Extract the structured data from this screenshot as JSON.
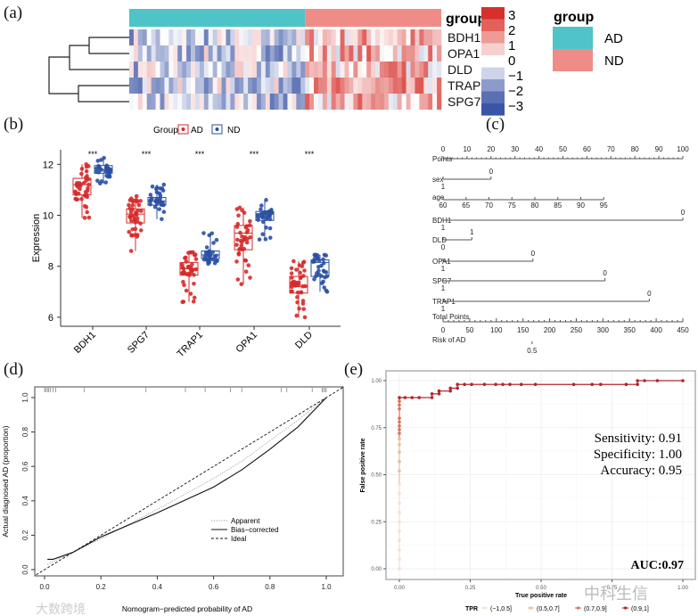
{
  "panel_labels": [
    "(a)",
    "(b)",
    "(c)",
    "(d)",
    "(e)"
  ],
  "watermarks": [
    "中科生信",
    "大数跨境"
  ],
  "chart_data": [
    {
      "type": "heatmap",
      "genes": [
        "BDH1",
        "OPA1",
        "DLD",
        "TRAP1",
        "SPG7"
      ],
      "annotation_title": "group",
      "legend_title": "group",
      "groups": [
        {
          "name": "AD",
          "color": "#4ec4c9",
          "n": 40
        },
        {
          "name": "ND",
          "color": "#f08c88",
          "n": 31
        }
      ],
      "scale_ticks": [
        "3",
        "2",
        "1",
        "0",
        "−1",
        "−2",
        "−3"
      ],
      "low_color": "#3b55a6",
      "mid_color": "#ffffff",
      "high_color": "#d7302a"
    },
    {
      "type": "box",
      "legend_title": "Group",
      "categories": [
        "BDH1",
        "SPG7",
        "TRAP1",
        "OPA1",
        "DLD"
      ],
      "significance": [
        "***",
        "***",
        "***",
        "***",
        "***"
      ],
      "ylabel": "Expression",
      "yticks": [
        6,
        8,
        10,
        12
      ],
      "ylim": [
        5.8,
        12.6
      ],
      "series": [
        {
          "name": "AD",
          "color": "#d62a2a",
          "n": 40,
          "stats_min_q1_median_q3_max": [
            [
              9.9,
              10.8,
              11.2,
              11.45,
              12.0
            ],
            [
              8.6,
              9.7,
              10.05,
              10.25,
              10.75
            ],
            [
              6.6,
              7.65,
              7.9,
              8.15,
              8.55
            ],
            [
              7.3,
              8.65,
              9.3,
              9.6,
              10.3
            ],
            [
              6.0,
              6.95,
              7.2,
              7.6,
              8.2
            ]
          ]
        },
        {
          "name": "ND",
          "color": "#2a4fa3",
          "n": 31,
          "stats_min_q1_median_q3_max": [
            [
              11.25,
              11.65,
              11.8,
              11.95,
              12.25
            ],
            [
              9.85,
              10.4,
              10.55,
              10.7,
              11.2
            ],
            [
              8.1,
              8.3,
              8.45,
              8.6,
              9.3
            ],
            [
              9.05,
              9.8,
              10.05,
              10.15,
              10.6
            ],
            [
              7.0,
              7.6,
              8.15,
              8.25,
              8.45
            ]
          ]
        }
      ]
    },
    {
      "type": "nomogram",
      "points_label": "Points",
      "points_ticks": [
        "0",
        "10",
        "20",
        "30",
        "40",
        "50",
        "60",
        "70",
        "80",
        "90",
        "100"
      ],
      "variables": [
        {
          "label": "sex",
          "levels": [
            {
              "text": "0",
              "points": 20
            },
            {
              "text": "1",
              "points": 0
            }
          ]
        },
        {
          "label": "age",
          "axis_ticks": [
            "60",
            "65",
            "70",
            "75",
            "80",
            "85",
            "90",
            "95"
          ],
          "points_range": [
            0,
            67
          ]
        },
        {
          "label": "BDH1",
          "levels": [
            {
              "text": "0",
              "points": 100
            },
            {
              "text": "1",
              "points": 0
            }
          ]
        },
        {
          "label": "DLD",
          "levels": [
            {
              "text": "1",
              "points": 12
            },
            {
              "text": "0",
              "points": 0
            }
          ]
        },
        {
          "label": "OPA1",
          "levels": [
            {
              "text": "0",
              "points": 37.5
            },
            {
              "text": "1",
              "points": 0
            }
          ]
        },
        {
          "label": "SPG7",
          "levels": [
            {
              "text": "0",
              "points": 67.5
            },
            {
              "text": "1",
              "points": 0
            }
          ]
        },
        {
          "label": "TRAP1",
          "levels": [
            {
              "text": "0",
              "points": 86
            },
            {
              "text": "1",
              "points": 0
            }
          ]
        }
      ],
      "total_label": "Total Points",
      "total_ticks": [
        "0",
        "50",
        "100",
        "150",
        "200",
        "250",
        "300",
        "350",
        "400",
        "450"
      ],
      "risk_label": "Risk of AD",
      "risk_ticks": [
        {
          "text": "0.5",
          "total_points": 167
        }
      ]
    },
    {
      "type": "line",
      "xlabel": "Nomogram−predicted probability of AD",
      "ylabel": "Actual diagnosed AD (proportion)",
      "xticks": [
        "0.0",
        "0.2",
        "0.4",
        "0.6",
        "0.8",
        "1.0"
      ],
      "yticks": [
        "0.0",
        "0.2",
        "0.4",
        "0.6",
        "0.8",
        "1.0"
      ],
      "xlim": [
        -0.03,
        1.06
      ],
      "ylim": [
        -0.03,
        1.06
      ],
      "legend": [
        "Apparent",
        "Bias−corrected",
        "Ideal"
      ],
      "legend_position": "bottom-right",
      "series": [
        {
          "name": "Apparent",
          "style": "dotted",
          "points": [
            [
              0.01,
              0.03
            ],
            [
              0.1,
              0.1
            ],
            [
              0.2,
              0.18
            ],
            [
              0.4,
              0.35
            ],
            [
              0.6,
              0.53
            ],
            [
              0.7,
              0.63
            ],
            [
              0.8,
              0.75
            ],
            [
              0.9,
              0.87
            ],
            [
              1.0,
              1.0
            ]
          ]
        },
        {
          "name": "Bias-corrected",
          "style": "solid",
          "points": [
            [
              0.01,
              0.06
            ],
            [
              0.03,
              0.06
            ],
            [
              0.1,
              0.1
            ],
            [
              0.2,
              0.19
            ],
            [
              0.4,
              0.33
            ],
            [
              0.6,
              0.48
            ],
            [
              0.65,
              0.53
            ],
            [
              0.7,
              0.58
            ],
            [
              0.8,
              0.7
            ],
            [
              0.9,
              0.83
            ],
            [
              1.0,
              1.0
            ]
          ]
        },
        {
          "name": "Ideal",
          "style": "dashed",
          "points": [
            [
              -0.03,
              -0.03
            ],
            [
              1.06,
              1.06
            ]
          ]
        }
      ],
      "rug": [
        0.0,
        0.005,
        0.01,
        0.015,
        0.02,
        0.03,
        0.04,
        0.14,
        0.36,
        0.5,
        0.57,
        0.66,
        0.7,
        0.84,
        0.86,
        0.95,
        0.985,
        0.99,
        0.995,
        1.0
      ]
    },
    {
      "type": "scatter",
      "xlabel": "True positive rate",
      "ylabel": "False positive rate",
      "xticks": [
        "0.00",
        "0.25",
        "0.50",
        "0.75",
        "1.00"
      ],
      "yticks": [
        "0.00",
        "0.25",
        "0.50",
        "0.75",
        "1.00"
      ],
      "legend_title": "TPR",
      "legend_position": "bottom",
      "legend": [
        {
          "label": "(−1,0.5]",
          "color": "#f6e0cf"
        },
        {
          "label": "(0.5,0.7]",
          "color": "#e8bc9f"
        },
        {
          "label": "(0.7,0.9]",
          "color": "#dc7358"
        },
        {
          "label": "(0.9,1]",
          "color": "#b3262a"
        }
      ],
      "roc_points": [
        [
          0,
          0.0
        ],
        [
          0,
          0.05
        ],
        [
          0,
          0.1
        ],
        [
          0,
          0.15
        ],
        [
          0,
          0.2
        ],
        [
          0,
          0.25
        ],
        [
          0,
          0.3
        ],
        [
          0,
          0.35
        ],
        [
          0,
          0.4
        ],
        [
          0,
          0.45
        ],
        [
          0,
          0.52
        ],
        [
          0,
          0.57
        ],
        [
          0,
          0.62
        ],
        [
          0,
          0.66
        ],
        [
          0,
          0.69
        ],
        [
          0,
          0.72
        ],
        [
          0,
          0.74
        ],
        [
          0,
          0.76
        ],
        [
          0,
          0.78
        ],
        [
          0,
          0.8
        ],
        [
          0,
          0.85
        ],
        [
          0,
          0.87
        ],
        [
          0,
          0.89
        ],
        [
          0,
          0.91
        ],
        [
          0.02,
          0.91
        ],
        [
          0.045,
          0.91
        ],
        [
          0.07,
          0.91
        ],
        [
          0.115,
          0.91
        ],
        [
          0.115,
          0.93
        ],
        [
          0.14,
          0.93
        ],
        [
          0.14,
          0.945
        ],
        [
          0.18,
          0.945
        ],
        [
          0.18,
          0.96
        ],
        [
          0.205,
          0.96
        ],
        [
          0.205,
          0.98
        ],
        [
          0.23,
          0.98
        ],
        [
          0.255,
          0.98
        ],
        [
          0.3,
          0.98
        ],
        [
          0.34,
          0.98
        ],
        [
          0.365,
          0.98
        ],
        [
          0.39,
          0.98
        ],
        [
          0.43,
          0.98
        ],
        [
          0.48,
          0.98
        ],
        [
          0.615,
          0.98
        ],
        [
          0.68,
          0.98
        ],
        [
          0.71,
          0.98
        ],
        [
          0.8,
          0.98
        ],
        [
          0.84,
          0.98
        ],
        [
          0.84,
          1.0
        ],
        [
          0.865,
          1.0
        ],
        [
          0.91,
          1.0
        ],
        [
          1.0,
          1.0
        ]
      ],
      "metrics": [
        "Sensitivity: 0.91",
        "Specificity: 1.00",
        "Accuracy: 0.95"
      ],
      "auc_label": "AUC:0.97"
    }
  ]
}
